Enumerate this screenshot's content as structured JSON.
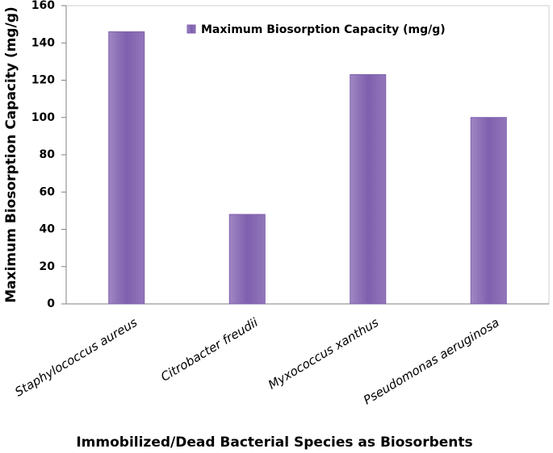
{
  "chart_data": {
    "type": "bar",
    "categories": [
      "Staphylococcus aureus",
      "Citrobacter freudii",
      "Myxococcus xanthus",
      "Pseudomonas aeruginosa"
    ],
    "series": [
      {
        "name": "Maximum Biosorption Capacity (mg/g)",
        "color": "#7f5fae",
        "values": [
          146,
          48,
          123,
          100
        ]
      }
    ],
    "x_label": "Immobilized/Dead Bacterial Species as Biosorbents",
    "y_label": "Maximum Biosorption Capacity (mg/g)",
    "ylim": [
      0,
      160
    ],
    "yticks": [
      0,
      20,
      40,
      60,
      80,
      100,
      120,
      140,
      160
    ],
    "legend": "top"
  }
}
